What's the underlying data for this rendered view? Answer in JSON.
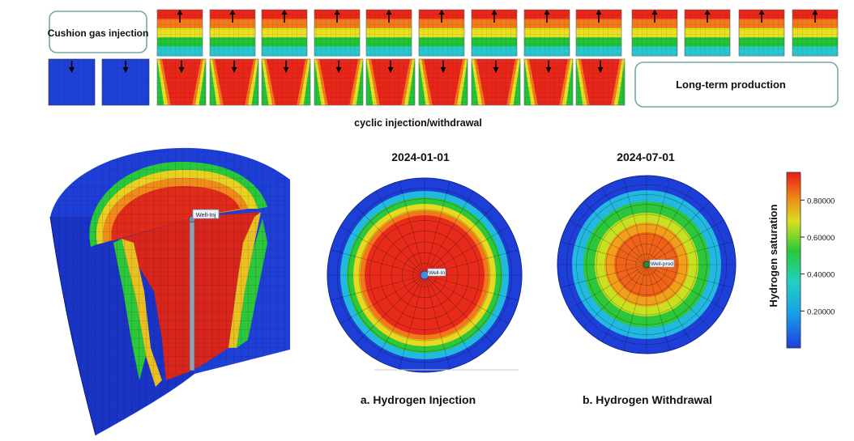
{
  "top_panel": {
    "cushion_label": "Cushion gas injection",
    "cyclic_label": "cyclic injection/withdrawal",
    "longterm_label": "Long-term production"
  },
  "maps": [
    {
      "date": "2024-01-01",
      "caption": "a. Hydrogen Injection",
      "well_label": "Well-In"
    },
    {
      "date": "2024-07-01",
      "caption": "b. Hydrogen Withdrawal",
      "well_label": "Well-prod"
    }
  ],
  "model_3d": {
    "well_label": "Well-Inj"
  },
  "colorbar": {
    "title": "Hydrogen saturation",
    "ticks": [
      "0.80000",
      "0.60000",
      "0.40000",
      "0.20000"
    ],
    "tick_values": [
      0.8,
      0.6,
      0.4,
      0.2
    ],
    "min": 0,
    "max": 0.95
  },
  "colors": {
    "red": "#e8261a",
    "orange": "#f27a1a",
    "yellow": "#e8e020",
    "green": "#22c23a",
    "cyan": "#28c8d0",
    "blue": "#1e42d8"
  }
}
